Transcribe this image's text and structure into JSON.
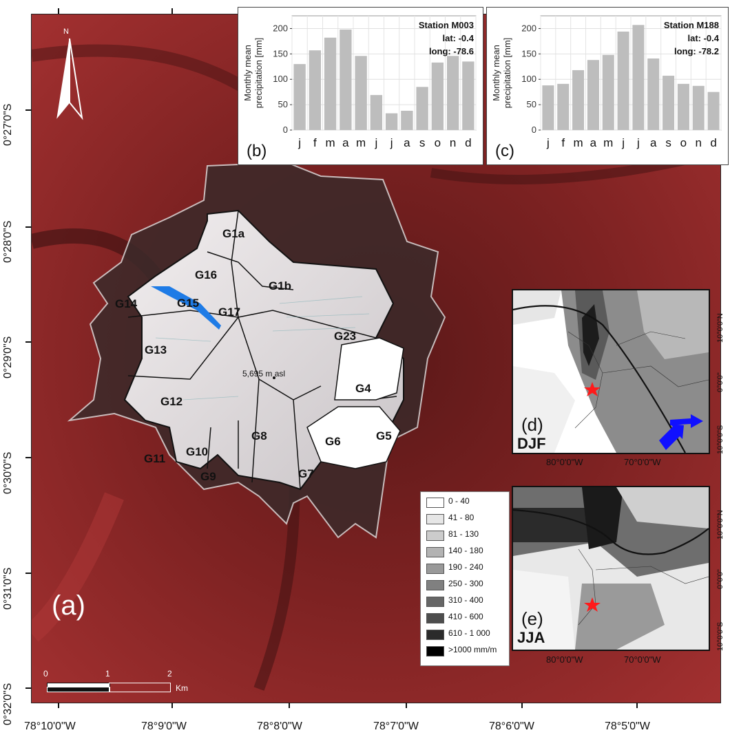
{
  "colors": {
    "terrain_red": "#8c2626",
    "terrain_dark": "#4a1414",
    "ice": "#e8e4e6",
    "glacier_outline": "#111111",
    "extent_outline": "#d8d8d8",
    "highlight_glacier": "#1e7be6",
    "bar_gray": "#bdbdbd",
    "arrow_blue": "#1010ff",
    "star_red": "#ff1a1a"
  },
  "main_map": {
    "panel_label": "(a)",
    "summit_label": "5,695 m asl",
    "north_label": "N",
    "glacier_labels": [
      "G1a",
      "G1b",
      "G16",
      "G14",
      "G15",
      "G17",
      "G23",
      "G13",
      "G12",
      "G4",
      "G8",
      "G6",
      "G5",
      "G10",
      "G11",
      "G9",
      "G7"
    ],
    "x_ticks": [
      "78°10'0\"W",
      "78°9'0\"W",
      "78°8'0\"W",
      "78°7'0\"W",
      "78°6'0\"W",
      "78°5'0\"W"
    ],
    "y_ticks": [
      "0°27'0\"S",
      "0°28'0\"S",
      "0°29'0\"S",
      "0°30'0\"S",
      "0°31'0\"S",
      "0°32'0\"S"
    ],
    "scale": {
      "labels": [
        "0",
        "1",
        "2"
      ],
      "unit": "Km"
    }
  },
  "legend": {
    "items": [
      {
        "label": "0 - 40",
        "color": "#ffffff"
      },
      {
        "label": "41 - 80",
        "color": "#e6e6e6"
      },
      {
        "label": "81 - 130",
        "color": "#cccccc"
      },
      {
        "label": "140 - 180",
        "color": "#b3b3b3"
      },
      {
        "label": "190 - 240",
        "color": "#999999"
      },
      {
        "label": "250 - 300",
        "color": "#808080"
      },
      {
        "label": "310 - 400",
        "color": "#666666"
      },
      {
        "label": "410 - 600",
        "color": "#4d4d4d"
      },
      {
        "label": "610 - 1 000",
        "color": "#2b2b2b"
      },
      {
        "label": ">1000 mm/m",
        "color": "#000000"
      }
    ]
  },
  "chart_data": [
    {
      "type": "bar",
      "panel_label": "(b)",
      "station": "Station M003",
      "lat": "lat: -0.4",
      "long": "long: -78.6",
      "ylabel": "Monthly mean\nprecipitation [mm]",
      "ylabel_line1": "Monthly mean",
      "ylabel_line2": "precipitation [mm]",
      "categories": [
        "j",
        "f",
        "m",
        "a",
        "m",
        "j",
        "j",
        "a",
        "s",
        "o",
        "n",
        "d"
      ],
      "values": [
        130,
        157,
        182,
        198,
        146,
        69,
        33,
        38,
        85,
        133,
        146,
        135
      ],
      "yticks": [
        0,
        50,
        100,
        150,
        200
      ],
      "ylim": [
        0,
        225
      ],
      "grid": true
    },
    {
      "type": "bar",
      "panel_label": "(c)",
      "station": "Station M188",
      "lat": "lat: -0.4",
      "long": "long: -78.2",
      "ylabel_line1": "Monthly mean",
      "ylabel_line2": "precipitation [mm]",
      "categories": [
        "j",
        "f",
        "m",
        "a",
        "m",
        "j",
        "j",
        "a",
        "s",
        "o",
        "n",
        "d"
      ],
      "values": [
        88,
        91,
        118,
        138,
        148,
        194,
        207,
        141,
        107,
        91,
        87,
        75
      ],
      "yticks": [
        0,
        50,
        100,
        150,
        200
      ],
      "ylim": [
        0,
        225
      ],
      "grid": true
    }
  ],
  "insets": [
    {
      "panel_label": "(d)",
      "season": "DJF",
      "x_ticks": [
        "80°0'0\"W",
        "70°0'0\"W"
      ],
      "y_ticks": [
        "10°0'0\"N",
        "0°0'0\"",
        "10°0'0\"S"
      ]
    },
    {
      "panel_label": "(e)",
      "season": "JJA",
      "x_ticks": [
        "80°0'0\"W",
        "70°0'0\"W"
      ],
      "y_ticks": [
        "10°0'0\"N",
        "0°0'0\"",
        "10°0'0\"S"
      ]
    }
  ]
}
